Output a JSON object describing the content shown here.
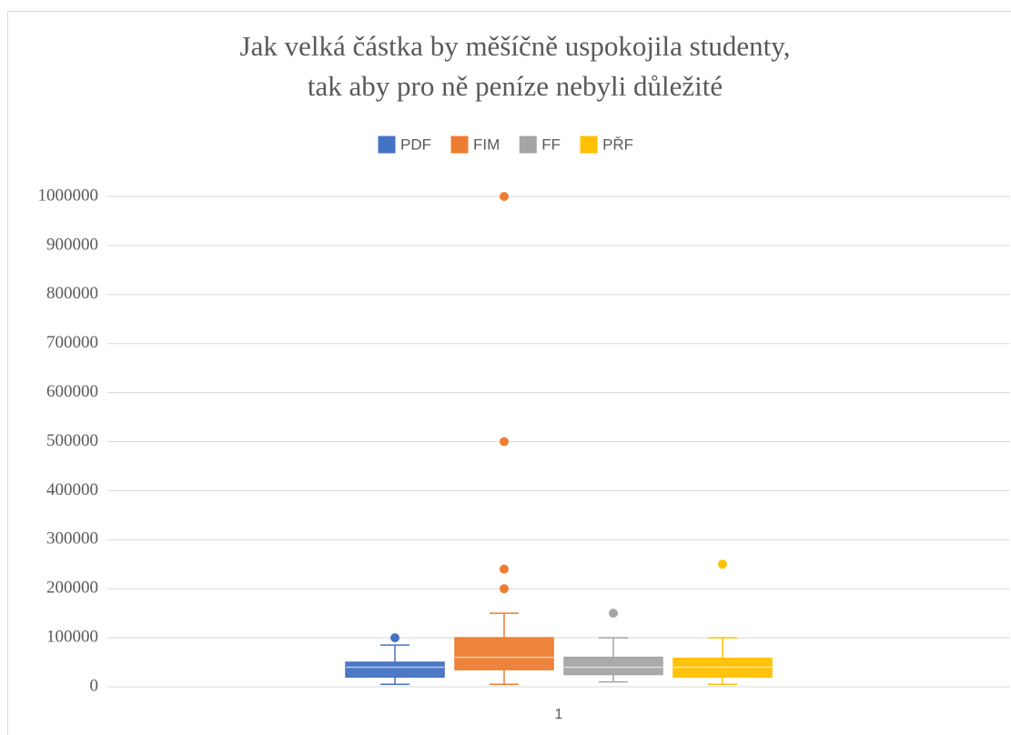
{
  "chart_data": {
    "type": "box",
    "title": [
      "Jak velká částka by měšíčně uspokojila studenty,",
      "tak aby pro ně peníze nebyli důležité"
    ],
    "categories": [
      "1"
    ],
    "series": [
      {
        "name": "PDF",
        "color": "#4472c4",
        "min": 5000,
        "q1": 20000,
        "median": 40000,
        "q3": 50000,
        "max": 85000,
        "outliers": [
          100000
        ]
      },
      {
        "name": "FIM",
        "color": "#ed7d31",
        "min": 5000,
        "q1": 35000,
        "median": 60000,
        "q3": 100000,
        "max": 150000,
        "outliers": [
          1000000,
          500000,
          240000,
          200000
        ]
      },
      {
        "name": "FF",
        "color": "#a5a5a5",
        "min": 10000,
        "q1": 25000,
        "median": 40000,
        "q3": 60000,
        "max": 100000,
        "outliers": [
          150000
        ]
      },
      {
        "name": "PŘF",
        "color": "#ffc000",
        "min": 5000,
        "q1": 20000,
        "median": 40000,
        "q3": 58000,
        "max": 100000,
        "outliers": [
          250000
        ]
      }
    ],
    "ylim": [
      0,
      1000000
    ],
    "yticks": [
      0,
      100000,
      200000,
      300000,
      400000,
      500000,
      600000,
      700000,
      800000,
      900000,
      1000000
    ],
    "grid": true,
    "legend": "top"
  }
}
